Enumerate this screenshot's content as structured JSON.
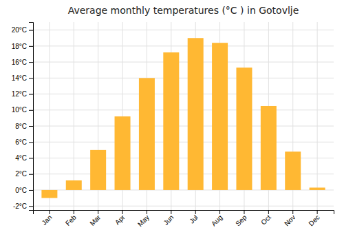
{
  "chart_data": {
    "type": "bar",
    "title": "Average monthly temperatures (°C ) in Gotovlje",
    "categories": [
      "Jan",
      "Feb",
      "Mar",
      "Apr",
      "May",
      "Jun",
      "Jul",
      "Aug",
      "Sep",
      "Oct",
      "Nov",
      "Dec"
    ],
    "values": [
      -1.0,
      1.2,
      5.0,
      9.2,
      14.0,
      17.2,
      19.0,
      18.4,
      15.3,
      10.5,
      4.8,
      0.3
    ],
    "color": "#FFB833",
    "ylim": [
      -2.5,
      21
    ],
    "yticks": [
      {
        "value": -2,
        "label": "-2°C"
      },
      {
        "value": 0,
        "label": "0°C"
      },
      {
        "value": 2,
        "label": "2°C"
      },
      {
        "value": 4,
        "label": "4°C"
      },
      {
        "value": 6,
        "label": "6°C"
      },
      {
        "value": 8,
        "label": "8°C"
      },
      {
        "value": 10,
        "label": "10°C"
      },
      {
        "value": 12,
        "label": "12°C"
      },
      {
        "value": 14,
        "label": "14°C"
      },
      {
        "value": 16,
        "label": "16°C"
      },
      {
        "value": 18,
        "label": "18°C"
      },
      {
        "value": 20,
        "label": "20°C"
      }
    ],
    "grid": true
  }
}
